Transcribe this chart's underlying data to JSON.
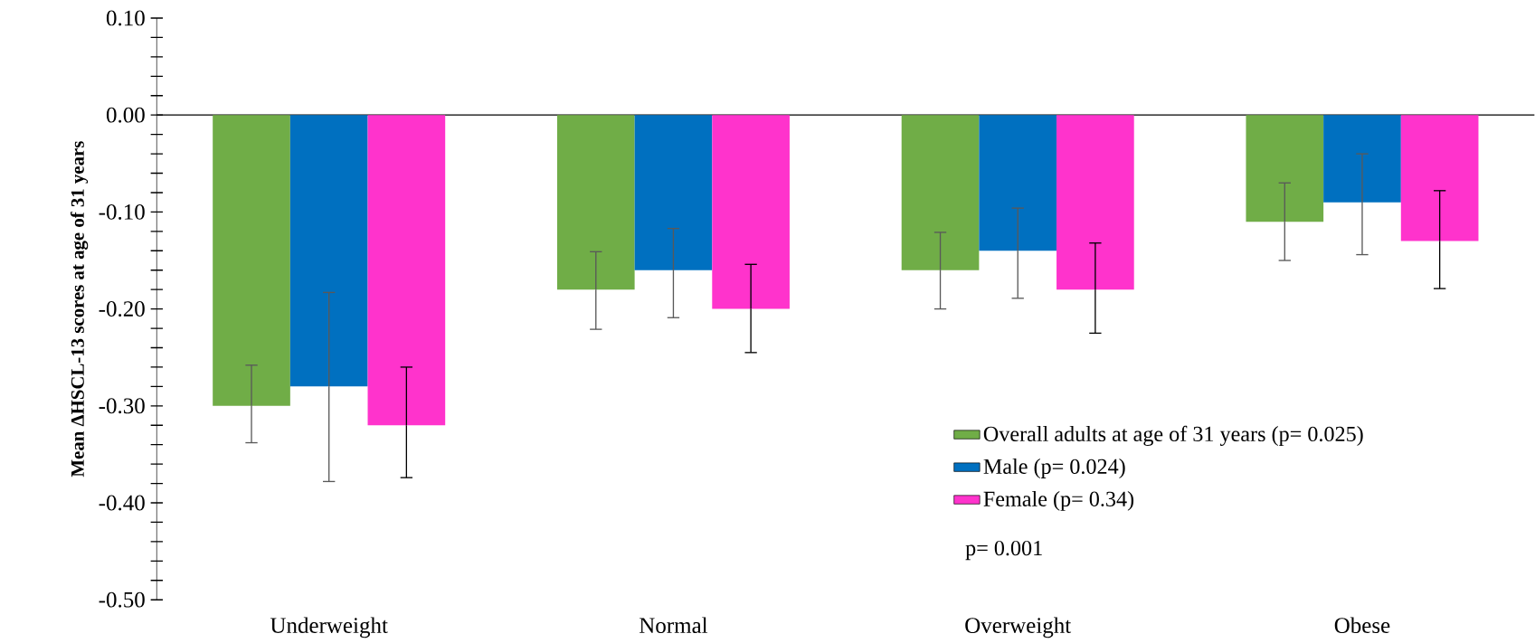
{
  "chart_data": {
    "type": "bar",
    "ylabel": "Mean ΔHSCL-13 scores at age of 31 years",
    "categories": [
      "Underweight",
      "Normal",
      "Overweight",
      "Obese"
    ],
    "series": [
      {
        "name": "Overall adults at age of 31 years (p= 0.025)",
        "color": "#70ad47",
        "values": [
          -0.3,
          -0.18,
          -0.16,
          -0.11
        ],
        "errors": [
          [
            -0.338,
            -0.258
          ],
          [
            -0.221,
            -0.141
          ],
          [
            -0.2,
            -0.121
          ],
          [
            -0.15,
            -0.07
          ]
        ]
      },
      {
        "name": "Male (p= 0.024)",
        "color": "#0070c0",
        "values": [
          -0.28,
          -0.16,
          -0.14,
          -0.09
        ],
        "errors": [
          [
            -0.378,
            -0.183
          ],
          [
            -0.209,
            -0.117
          ],
          [
            -0.189,
            -0.096
          ],
          [
            -0.144,
            -0.04
          ]
        ]
      },
      {
        "name": "Female (p= 0.34)",
        "color": "#ff33cc",
        "values": [
          -0.32,
          -0.2,
          -0.18,
          -0.13
        ],
        "errors": [
          [
            -0.374,
            -0.26
          ],
          [
            -0.245,
            -0.154
          ],
          [
            -0.225,
            -0.132
          ],
          [
            -0.179,
            -0.078
          ]
        ]
      }
    ],
    "ylim": [
      -0.5,
      0.1
    ],
    "yticks": [
      {
        "value": 0.1,
        "label": "0.10"
      },
      {
        "value": 0.08,
        "label": null
      },
      {
        "value": 0.06,
        "label": null
      },
      {
        "value": 0.04,
        "label": null
      },
      {
        "value": 0.02,
        "label": null
      },
      {
        "value": 0.0,
        "label": "0.00"
      },
      {
        "value": -0.02,
        "label": null
      },
      {
        "value": -0.04,
        "label": null
      },
      {
        "value": -0.06,
        "label": null
      },
      {
        "value": -0.08,
        "label": null
      },
      {
        "value": -0.1,
        "label": "-0.10"
      },
      {
        "value": -0.12,
        "label": null
      },
      {
        "value": -0.14,
        "label": null
      },
      {
        "value": -0.16,
        "label": null
      },
      {
        "value": -0.18,
        "label": null
      },
      {
        "value": -0.2,
        "label": "-0.20"
      },
      {
        "value": -0.22,
        "label": null
      },
      {
        "value": -0.24,
        "label": null
      },
      {
        "value": -0.26,
        "label": null
      },
      {
        "value": -0.28,
        "label": null
      },
      {
        "value": -0.3,
        "label": "-0.30"
      },
      {
        "value": -0.32,
        "label": null
      },
      {
        "value": -0.34,
        "label": null
      },
      {
        "value": -0.36,
        "label": null
      },
      {
        "value": -0.38,
        "label": null
      },
      {
        "value": -0.4,
        "label": "-0.40"
      },
      {
        "value": -0.42,
        "label": null
      },
      {
        "value": -0.44,
        "label": null
      },
      {
        "value": -0.46,
        "label": null
      },
      {
        "value": -0.48,
        "label": null
      },
      {
        "value": -0.5,
        "label": "-0.50"
      }
    ],
    "legend": "bottom right",
    "annotations": [
      "p= 0.001"
    ]
  }
}
